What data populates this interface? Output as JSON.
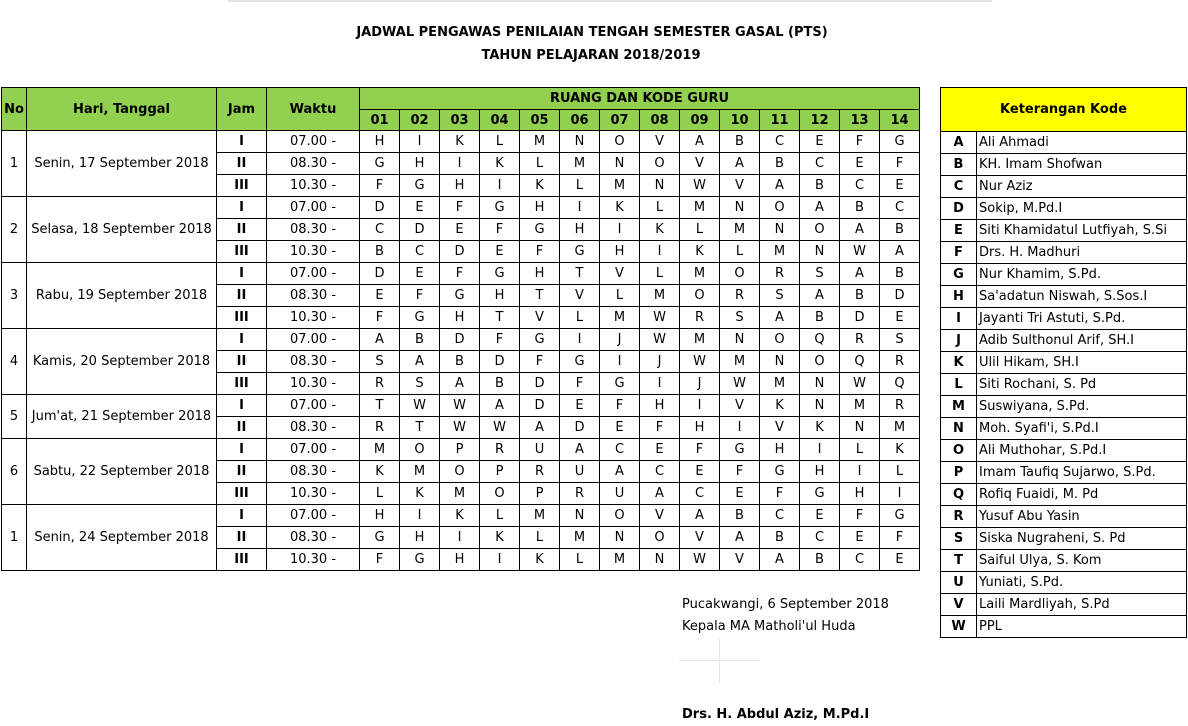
{
  "document": {
    "title_line1": "JADWAL PENGAWAS PENILAIAN TENGAH SEMESTER GASAL (PTS)",
    "title_line2": "TAHUN PELAJARAN 2018/2019"
  },
  "headers": {
    "no": "No",
    "hari": "Hari, Tanggal",
    "jam": "Jam",
    "waktu": "Waktu",
    "ruang": "RUANG DAN KODE GURU",
    "rooms": [
      "01",
      "02",
      "03",
      "04",
      "05",
      "06",
      "07",
      "08",
      "09",
      "10",
      "11",
      "12",
      "13",
      "14"
    ]
  },
  "days": [
    {
      "no": "1",
      "date": "Senin, 17 September 2018",
      "sessions": [
        {
          "jam": "I",
          "waktu": "07.00 -",
          "codes": [
            "H",
            "I",
            "K",
            "L",
            "M",
            "N",
            "O",
            "V",
            "A",
            "B",
            "C",
            "E",
            "F",
            "G"
          ]
        },
        {
          "jam": "II",
          "waktu": "08.30 -",
          "codes": [
            "G",
            "H",
            "I",
            "K",
            "L",
            "M",
            "N",
            "O",
            "V",
            "A",
            "B",
            "C",
            "E",
            "F"
          ]
        },
        {
          "jam": "III",
          "waktu": "10.30 -",
          "codes": [
            "F",
            "G",
            "H",
            "I",
            "K",
            "L",
            "M",
            "N",
            "W",
            "V",
            "A",
            "B",
            "C",
            "E"
          ]
        }
      ]
    },
    {
      "no": "2",
      "date": "Selasa, 18 September 2018",
      "sessions": [
        {
          "jam": "I",
          "waktu": "07.00 -",
          "codes": [
            "D",
            "E",
            "F",
            "G",
            "H",
            "I",
            "K",
            "L",
            "M",
            "N",
            "O",
            "A",
            "B",
            "C"
          ]
        },
        {
          "jam": "II",
          "waktu": "08.30 -",
          "codes": [
            "C",
            "D",
            "E",
            "F",
            "G",
            "H",
            "I",
            "K",
            "L",
            "M",
            "N",
            "O",
            "A",
            "B"
          ]
        },
        {
          "jam": "III",
          "waktu": "10.30 -",
          "codes": [
            "B",
            "C",
            "D",
            "E",
            "F",
            "G",
            "H",
            "I",
            "K",
            "L",
            "M",
            "N",
            "W",
            "A"
          ]
        }
      ]
    },
    {
      "no": "3",
      "date": "Rabu, 19 September 2018",
      "sessions": [
        {
          "jam": "I",
          "waktu": "07.00 -",
          "codes": [
            "D",
            "E",
            "F",
            "G",
            "H",
            "T",
            "V",
            "L",
            "M",
            "O",
            "R",
            "S",
            "A",
            "B"
          ]
        },
        {
          "jam": "II",
          "waktu": "08.30 -",
          "codes": [
            "E",
            "F",
            "G",
            "H",
            "T",
            "V",
            "L",
            "M",
            "O",
            "R",
            "S",
            "A",
            "B",
            "D"
          ]
        },
        {
          "jam": "III",
          "waktu": "10.30 -",
          "codes": [
            "F",
            "G",
            "H",
            "T",
            "V",
            "L",
            "M",
            "W",
            "R",
            "S",
            "A",
            "B",
            "D",
            "E"
          ]
        }
      ]
    },
    {
      "no": "4",
      "date": "Kamis, 20 September 2018",
      "sessions": [
        {
          "jam": "I",
          "waktu": "07.00 -",
          "codes": [
            "A",
            "B",
            "D",
            "F",
            "G",
            "I",
            "J",
            "W",
            "M",
            "N",
            "O",
            "Q",
            "R",
            "S"
          ]
        },
        {
          "jam": "II",
          "waktu": "08.30 -",
          "codes": [
            "S",
            "A",
            "B",
            "D",
            "F",
            "G",
            "I",
            "J",
            "W",
            "M",
            "N",
            "O",
            "Q",
            "R"
          ]
        },
        {
          "jam": "III",
          "waktu": "10.30 -",
          "codes": [
            "R",
            "S",
            "A",
            "B",
            "D",
            "F",
            "G",
            "I",
            "J",
            "W",
            "M",
            "N",
            "W",
            "Q"
          ]
        }
      ]
    },
    {
      "no": "5",
      "date": "Jum'at, 21 September 2018",
      "sessions": [
        {
          "jam": "I",
          "waktu": "07.00 -",
          "codes": [
            "T",
            "W",
            "W",
            "A",
            "D",
            "E",
            "F",
            "H",
            "I",
            "V",
            "K",
            "N",
            "M",
            "R"
          ]
        },
        {
          "jam": "II",
          "waktu": "08.30 -",
          "codes": [
            "R",
            "T",
            "W",
            "W",
            "A",
            "D",
            "E",
            "F",
            "H",
            "I",
            "V",
            "K",
            "N",
            "M"
          ]
        }
      ]
    },
    {
      "no": "6",
      "date": "Sabtu, 22 September 2018",
      "sessions": [
        {
          "jam": "I",
          "waktu": "07.00 -",
          "codes": [
            "M",
            "O",
            "P",
            "R",
            "U",
            "A",
            "C",
            "E",
            "F",
            "G",
            "H",
            "I",
            "L",
            "K"
          ]
        },
        {
          "jam": "II",
          "waktu": "08.30 -",
          "codes": [
            "K",
            "M",
            "O",
            "P",
            "R",
            "U",
            "A",
            "C",
            "E",
            "F",
            "G",
            "H",
            "I",
            "L"
          ]
        },
        {
          "jam": "III",
          "waktu": "10.30 -",
          "codes": [
            "L",
            "K",
            "M",
            "O",
            "P",
            "R",
            "U",
            "A",
            "C",
            "E",
            "F",
            "G",
            "H",
            "I"
          ]
        }
      ]
    },
    {
      "no": "1",
      "date": "Senin, 24 September 2018",
      "sessions": [
        {
          "jam": "I",
          "waktu": "07.00 -",
          "codes": [
            "H",
            "I",
            "K",
            "L",
            "M",
            "N",
            "O",
            "V",
            "A",
            "B",
            "C",
            "E",
            "F",
            "G"
          ]
        },
        {
          "jam": "II",
          "waktu": "08.30 -",
          "codes": [
            "G",
            "H",
            "I",
            "K",
            "L",
            "M",
            "N",
            "O",
            "V",
            "A",
            "B",
            "C",
            "E",
            "F"
          ]
        },
        {
          "jam": "III",
          "waktu": "10.30 -",
          "codes": [
            "F",
            "G",
            "H",
            "I",
            "K",
            "L",
            "M",
            "N",
            "W",
            "V",
            "A",
            "B",
            "C",
            "E"
          ]
        }
      ]
    }
  ],
  "legend": {
    "title": "Keterangan Kode",
    "items": [
      {
        "code": "A",
        "name": "Ali Ahmadi"
      },
      {
        "code": "B",
        "name": "KH. Imam Shofwan"
      },
      {
        "code": "C",
        "name": "Nur Aziz"
      },
      {
        "code": "D",
        "name": "Sokip, M.Pd.I"
      },
      {
        "code": "E",
        "name": "Siti Khamidatul Lutfiyah, S.Si"
      },
      {
        "code": "F",
        "name": "Drs. H. Madhuri"
      },
      {
        "code": "G",
        "name": "Nur Khamim, S.Pd."
      },
      {
        "code": "H",
        "name": "Sa'adatun Niswah, S.Sos.I"
      },
      {
        "code": "I",
        "name": "Jayanti Tri Astuti, S.Pd."
      },
      {
        "code": "J",
        "name": "Adib Sulthonul Arif, SH.I"
      },
      {
        "code": "K",
        "name": "Ulil Hikam, SH.I"
      },
      {
        "code": "L",
        "name": "Siti Rochani, S. Pd"
      },
      {
        "code": "M",
        "name": "Suswiyana, S.Pd."
      },
      {
        "code": "N",
        "name": "Moh. Syafi'i, S.Pd.I"
      },
      {
        "code": "O",
        "name": "Ali Muthohar, S.Pd.I"
      },
      {
        "code": "P",
        "name": "Imam Taufiq Sujarwo, S.Pd."
      },
      {
        "code": "Q",
        "name": "Rofiq Fuaidi, M. Pd"
      },
      {
        "code": "R",
        "name": "Yusuf Abu Yasin"
      },
      {
        "code": "S",
        "name": "Siska Nugraheni, S. Pd"
      },
      {
        "code": "T",
        "name": "Saiful Ulya, S. Kom"
      },
      {
        "code": "U",
        "name": "Yuniati, S.Pd."
      },
      {
        "code": "V",
        "name": "Laili Mardliyah, S.Pd"
      },
      {
        "code": "W",
        "name": "PPL"
      }
    ]
  },
  "signature": {
    "place_date": "Pucakwangi, 6 September 2018",
    "role": "Kepala MA Matholi'ul Huda",
    "name": "Drs. H. Abdul Aziz, M.Pd.I"
  },
  "colors": {
    "header_green": "#92d050",
    "legend_yellow": "#ffff00"
  }
}
